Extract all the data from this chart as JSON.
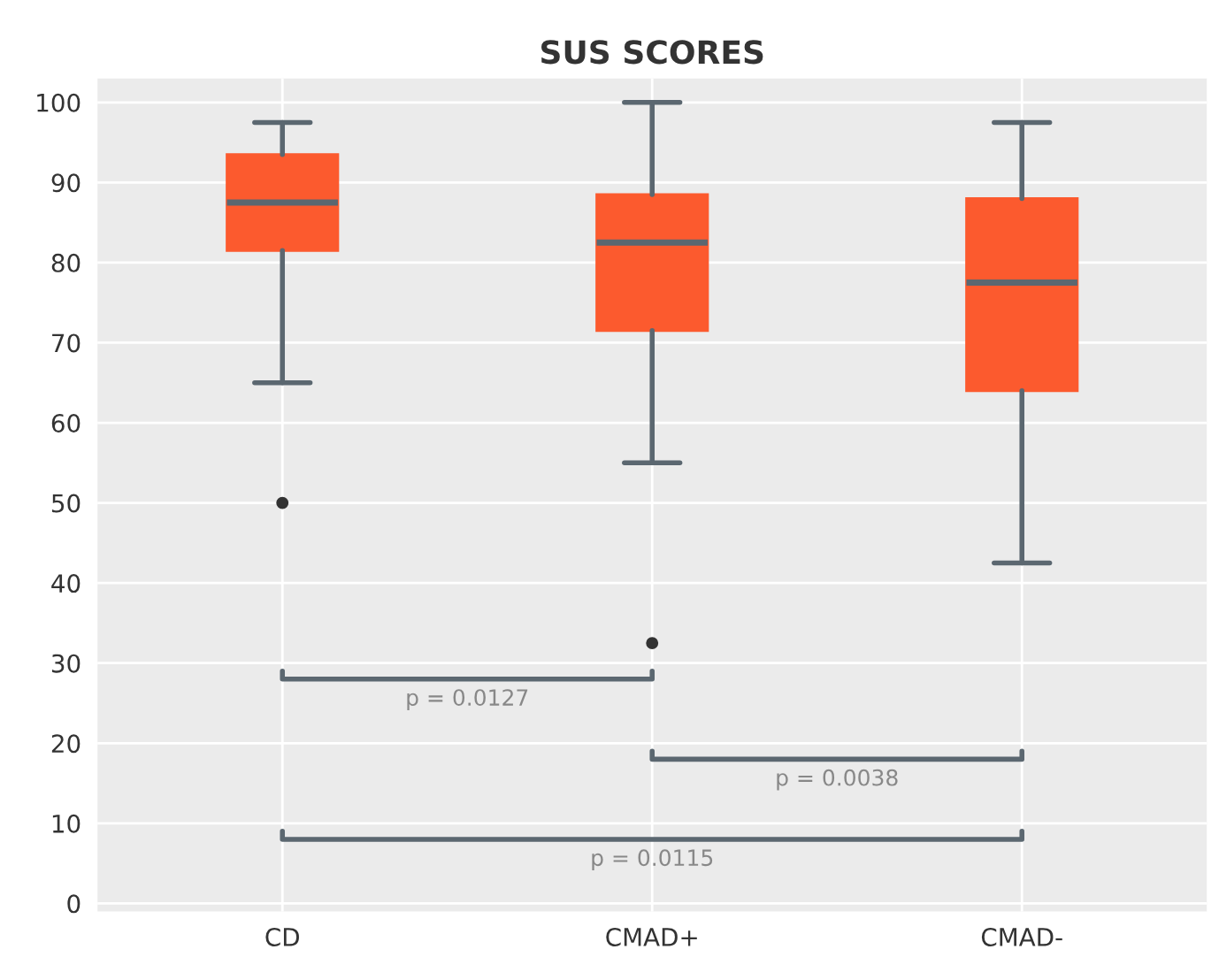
{
  "chart_data": {
    "type": "box",
    "title": "SUS SCORES",
    "categories": [
      "CD",
      "CMAD+",
      "CMAD-"
    ],
    "boxes": [
      {
        "low": 65,
        "q1": 81.5,
        "median": 87.5,
        "q3": 93.5,
        "high": 97.5,
        "outliers": [
          50
        ]
      },
      {
        "low": 55,
        "q1": 71.5,
        "median": 82.5,
        "q3": 88.5,
        "high": 100,
        "outliers": [
          32.5
        ]
      },
      {
        "low": 42.5,
        "q1": 64,
        "median": 77.5,
        "q3": 88,
        "high": 97.5
      }
    ],
    "color": "#fc5a2e",
    "ylim": [
      -1,
      103
    ],
    "yticks": [
      0,
      10,
      20,
      30,
      40,
      50,
      60,
      70,
      80,
      90,
      100
    ],
    "grid": true,
    "legend": false,
    "annotations": [
      "p = 0.0127",
      "p = 0.0038",
      "p = 0.0115"
    ]
  }
}
